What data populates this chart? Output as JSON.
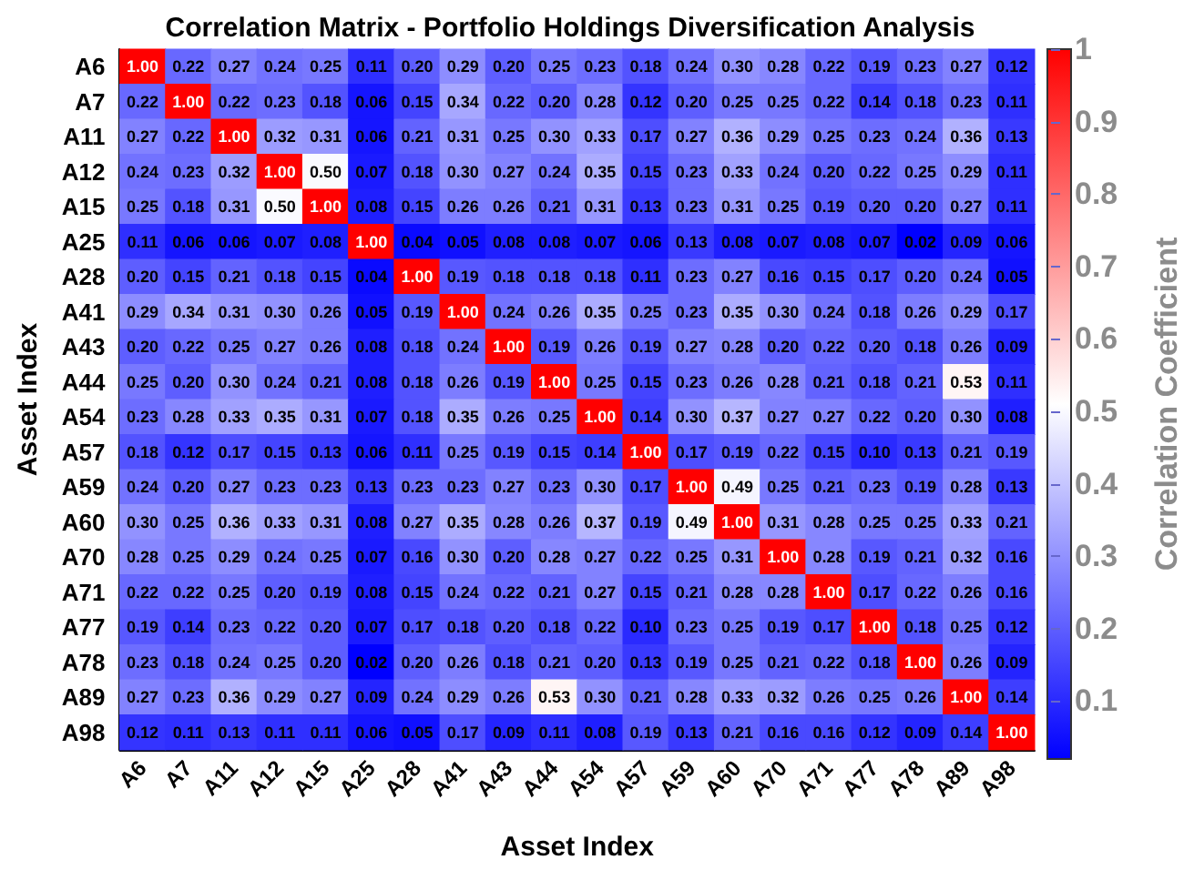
{
  "chart_data": {
    "type": "heatmap",
    "title": "Correlation Matrix - Portfolio Holdings Diversification Analysis",
    "xlabel": "Asset Index",
    "ylabel": "Asset Index",
    "clabel": "Correlation Coefficient",
    "categories": [
      "A6",
      "A7",
      "A11",
      "A12",
      "A15",
      "A25",
      "A28",
      "A41",
      "A43",
      "A44",
      "A54",
      "A57",
      "A59",
      "A60",
      "A70",
      "A71",
      "A77",
      "A78",
      "A89",
      "A98"
    ],
    "y_categories": [
      "A6",
      "A7",
      "A11",
      "A12",
      "A15",
      "A25",
      "A28",
      "A41",
      "A43",
      "A44",
      "A54",
      "A57",
      "A59",
      "A60",
      "A70",
      "A71",
      "A77",
      "A78",
      "A89",
      "A98"
    ],
    "cells": [
      [
        1.0,
        0.22,
        0.27,
        0.24,
        0.25,
        0.11,
        0.2,
        0.29,
        0.2,
        0.25,
        0.23,
        0.18,
        0.24,
        0.3,
        0.28,
        0.22,
        0.19,
        0.23,
        0.27,
        0.12
      ],
      [
        0.22,
        1.0,
        0.22,
        0.23,
        0.18,
        0.06,
        0.15,
        0.34,
        0.22,
        0.2,
        0.28,
        0.12,
        0.2,
        0.25,
        0.25,
        0.22,
        0.14,
        0.18,
        0.23,
        0.11
      ],
      [
        0.27,
        0.22,
        1.0,
        0.32,
        0.31,
        0.06,
        0.21,
        0.31,
        0.25,
        0.3,
        0.33,
        0.17,
        0.27,
        0.36,
        0.29,
        0.25,
        0.23,
        0.24,
        0.36,
        0.13
      ],
      [
        0.24,
        0.23,
        0.32,
        1.0,
        0.5,
        0.07,
        0.18,
        0.3,
        0.27,
        0.24,
        0.35,
        0.15,
        0.23,
        0.33,
        0.24,
        0.2,
        0.22,
        0.25,
        0.29,
        0.11
      ],
      [
        0.25,
        0.18,
        0.31,
        0.5,
        1.0,
        0.08,
        0.15,
        0.26,
        0.26,
        0.21,
        0.31,
        0.13,
        0.23,
        0.31,
        0.25,
        0.19,
        0.2,
        0.2,
        0.27,
        0.11
      ],
      [
        0.11,
        0.06,
        0.06,
        0.07,
        0.08,
        1.0,
        0.04,
        0.05,
        0.08,
        0.08,
        0.07,
        0.06,
        0.13,
        0.08,
        0.07,
        0.08,
        0.07,
        0.02,
        0.09,
        0.06
      ],
      [
        0.2,
        0.15,
        0.21,
        0.18,
        0.15,
        0.04,
        1.0,
        0.19,
        0.18,
        0.18,
        0.18,
        0.11,
        0.23,
        0.27,
        0.16,
        0.15,
        0.17,
        0.2,
        0.24,
        0.05
      ],
      [
        0.29,
        0.34,
        0.31,
        0.3,
        0.26,
        0.05,
        0.19,
        1.0,
        0.24,
        0.26,
        0.35,
        0.25,
        0.23,
        0.35,
        0.3,
        0.24,
        0.18,
        0.26,
        0.29,
        0.17
      ],
      [
        0.2,
        0.22,
        0.25,
        0.27,
        0.26,
        0.08,
        0.18,
        0.24,
        1.0,
        0.19,
        0.26,
        0.19,
        0.27,
        0.28,
        0.2,
        0.22,
        0.2,
        0.18,
        0.26,
        0.09
      ],
      [
        0.25,
        0.2,
        0.3,
        0.24,
        0.21,
        0.08,
        0.18,
        0.26,
        0.19,
        1.0,
        0.25,
        0.15,
        0.23,
        0.26,
        0.28,
        0.21,
        0.18,
        0.21,
        0.53,
        0.11
      ],
      [
        0.23,
        0.28,
        0.33,
        0.35,
        0.31,
        0.07,
        0.18,
        0.35,
        0.26,
        0.25,
        1.0,
        0.14,
        0.3,
        0.37,
        0.27,
        0.27,
        0.22,
        0.2,
        0.3,
        0.08
      ],
      [
        0.18,
        0.12,
        0.17,
        0.15,
        0.13,
        0.06,
        0.11,
        0.25,
        0.19,
        0.15,
        0.14,
        1.0,
        0.17,
        0.19,
        0.22,
        0.15,
        0.1,
        0.13,
        0.21,
        0.19
      ],
      [
        0.24,
        0.2,
        0.27,
        0.23,
        0.23,
        0.13,
        0.23,
        0.23,
        0.27,
        0.23,
        0.3,
        0.17,
        1.0,
        0.49,
        0.25,
        0.21,
        0.23,
        0.19,
        0.28,
        0.13
      ],
      [
        0.3,
        0.25,
        0.36,
        0.33,
        0.31,
        0.08,
        0.27,
        0.35,
        0.28,
        0.26,
        0.37,
        0.19,
        0.49,
        1.0,
        0.31,
        0.28,
        0.25,
        0.25,
        0.33,
        0.21
      ],
      [
        0.28,
        0.25,
        0.29,
        0.24,
        0.25,
        0.07,
        0.16,
        0.3,
        0.2,
        0.28,
        0.27,
        0.22,
        0.25,
        0.31,
        1.0,
        0.28,
        0.19,
        0.21,
        0.32,
        0.16
      ],
      [
        0.22,
        0.22,
        0.25,
        0.2,
        0.19,
        0.08,
        0.15,
        0.24,
        0.22,
        0.21,
        0.27,
        0.15,
        0.21,
        0.28,
        0.28,
        1.0,
        0.17,
        0.22,
        0.26,
        0.16
      ],
      [
        0.19,
        0.14,
        0.23,
        0.22,
        0.2,
        0.07,
        0.17,
        0.18,
        0.2,
        0.18,
        0.22,
        0.1,
        0.23,
        0.25,
        0.19,
        0.17,
        1.0,
        0.18,
        0.25,
        0.12
      ],
      [
        0.23,
        0.18,
        0.24,
        0.25,
        0.2,
        0.02,
        0.2,
        0.26,
        0.18,
        0.21,
        0.2,
        0.13,
        0.19,
        0.25,
        0.21,
        0.22,
        0.18,
        1.0,
        0.26,
        0.09
      ],
      [
        0.27,
        0.23,
        0.36,
        0.29,
        0.27,
        0.09,
        0.24,
        0.29,
        0.26,
        0.53,
        0.3,
        0.21,
        0.28,
        0.33,
        0.32,
        0.26,
        0.25,
        0.26,
        1.0,
        0.14
      ],
      [
        0.12,
        0.11,
        0.13,
        0.11,
        0.11,
        0.06,
        0.05,
        0.17,
        0.09,
        0.11,
        0.08,
        0.19,
        0.13,
        0.21,
        0.16,
        0.16,
        0.12,
        0.09,
        0.14,
        1.0
      ]
    ],
    "cell_labels": [
      [
        "1.00",
        "0.22",
        "0.27",
        "0.24",
        "0.25",
        "0.11",
        "0.20",
        "0.29",
        "0.20",
        "0.25",
        "0.23",
        "0.18",
        "0.24",
        "0.30",
        "0.28",
        "0.22",
        "0.19",
        "0.23",
        "0.27",
        "0.12"
      ],
      [
        "0.22",
        "1.00",
        "0.22",
        "0.23",
        "0.18",
        "0.06",
        "0.15",
        "0.34",
        "0.22",
        "0.20",
        "0.28",
        "0.12",
        "0.20",
        "0.25",
        "0.25",
        "0.22",
        "0.14",
        "0.18",
        "0.23",
        "0.11"
      ],
      [
        "0.27",
        "0.22",
        "1.00",
        "0.32",
        "0.31",
        "0.06",
        "0.21",
        "0.31",
        "0.25",
        "0.30",
        "0.33",
        "0.17",
        "0.27",
        "0.36",
        "0.29",
        "0.25",
        "0.23",
        "0.24",
        "0.36",
        "0.13"
      ],
      [
        "0.24",
        "0.23",
        "0.32",
        "1.00",
        "0.50",
        "0.07",
        "0.18",
        "0.30",
        "0.27",
        "0.24",
        "0.35",
        "0.15",
        "0.23",
        "0.33",
        "0.24",
        "0.20",
        "0.22",
        "0.25",
        "0.29",
        "0.11"
      ],
      [
        "0.25",
        "0.18",
        "0.31",
        "0.50",
        "1.00",
        "0.08",
        "0.15",
        "0.26",
        "0.26",
        "0.21",
        "0.31",
        "0.13",
        "0.23",
        "0.31",
        "0.25",
        "0.19",
        "0.20",
        "0.20",
        "0.27",
        "0.11"
      ],
      [
        "0.11",
        "0.06",
        "0.06",
        "0.07",
        "0.08",
        "1.00",
        "0.04",
        "0.05",
        "0.08",
        "0.08",
        "0.07",
        "0.06",
        "0.13",
        "0.08",
        "0.07",
        "0.08",
        "0.07",
        "0.02",
        "0.09",
        "0.06"
      ],
      [
        "0.20",
        "0.15",
        "0.21",
        "0.18",
        "0.15",
        "0.04",
        "1.00",
        "0.19",
        "0.18",
        "0.18",
        "0.18",
        "0.11",
        "0.23",
        "0.27",
        "0.16",
        "0.15",
        "0.17",
        "0.20",
        "0.24",
        "0.05"
      ],
      [
        "0.29",
        "0.34",
        "0.31",
        "0.30",
        "0.26",
        "0.05",
        "0.19",
        "1.00",
        "0.24",
        "0.26",
        "0.35",
        "0.25",
        "0.23",
        "0.35",
        "0.30",
        "0.24",
        "0.18",
        "0.26",
        "0.29",
        "0.17"
      ],
      [
        "0.20",
        "0.22",
        "0.25",
        "0.27",
        "0.26",
        "0.08",
        "0.18",
        "0.24",
        "1.00",
        "0.19",
        "0.26",
        "0.19",
        "0.27",
        "0.28",
        "0.20",
        "0.22",
        "0.20",
        "0.18",
        "0.26",
        "0.09"
      ],
      [
        "0.25",
        "0.20",
        "0.30",
        "0.24",
        "0.21",
        "0.08",
        "0.18",
        "0.26",
        "0.19",
        "1.00",
        "0.25",
        "0.15",
        "0.23",
        "0.26",
        "0.28",
        "0.21",
        "0.18",
        "0.21",
        "0.53",
        "0.11"
      ],
      [
        "0.23",
        "0.28",
        "0.33",
        "0.35",
        "0.31",
        "0.07",
        "0.18",
        "0.35",
        "0.26",
        "0.25",
        "1.00",
        "0.14",
        "0.30",
        "0.37",
        "0.27",
        "0.27",
        "0.22",
        "0.20",
        "0.30",
        "0.08"
      ],
      [
        "0.18",
        "0.12",
        "0.17",
        "0.15",
        "0.13",
        "0.06",
        "0.11",
        "0.25",
        "0.19",
        "0.15",
        "0.14",
        "1.00",
        "0.17",
        "0.19",
        "0.22",
        "0.15",
        "0.10",
        "0.13",
        "0.21",
        "0.19"
      ],
      [
        "0.24",
        "0.20",
        "0.27",
        "0.23",
        "0.23",
        "0.13",
        "0.23",
        "0.23",
        "0.27",
        "0.23",
        "0.30",
        "0.17",
        "1.00",
        "0.49",
        "0.25",
        "0.21",
        "0.23",
        "0.19",
        "0.28",
        "0.13"
      ],
      [
        "0.30",
        "0.25",
        "0.36",
        "0.33",
        "0.31",
        "0.08",
        "0.27",
        "0.35",
        "0.28",
        "0.26",
        "0.37",
        "0.19",
        "0.49",
        "1.00",
        "0.31",
        "0.28",
        "0.25",
        "0.25",
        "0.33",
        "0.21"
      ],
      [
        "0.28",
        "0.25",
        "0.29",
        "0.24",
        "0.25",
        "0.07",
        "0.16",
        "0.30",
        "0.20",
        "0.28",
        "0.27",
        "0.22",
        "0.25",
        "0.31",
        "1.00",
        "0.28",
        "0.19",
        "0.21",
        "0.32",
        "0.16"
      ],
      [
        "0.22",
        "0.22",
        "0.25",
        "0.20",
        "0.19",
        "0.08",
        "0.15",
        "0.24",
        "0.22",
        "0.21",
        "0.27",
        "0.15",
        "0.21",
        "0.28",
        "0.28",
        "1.00",
        "0.17",
        "0.22",
        "0.26",
        "0.16"
      ],
      [
        "0.19",
        "0.14",
        "0.23",
        "0.22",
        "0.20",
        "0.07",
        "0.17",
        "0.18",
        "0.20",
        "0.18",
        "0.22",
        "0.10",
        "0.23",
        "0.25",
        "0.19",
        "0.17",
        "1.00",
        "0.18",
        "0.25",
        "0.12"
      ],
      [
        "0.23",
        "0.18",
        "0.24",
        "0.25",
        "0.20",
        "0.02",
        "0.20",
        "0.26",
        "0.18",
        "0.21",
        "0.20",
        "0.13",
        "0.19",
        "0.25",
        "0.21",
        "0.22",
        "0.18",
        "1.00",
        "0.26",
        "0.09"
      ],
      [
        "0.27",
        "0.23",
        "0.36",
        "0.29",
        "0.27",
        "0.09",
        "0.24",
        "0.29",
        "0.26",
        "0.53",
        "0.30",
        "0.21",
        "0.28",
        "0.33",
        "0.32",
        "0.26",
        "0.25",
        "0.26",
        "1.00",
        "0.14"
      ],
      [
        "0.12",
        "0.11",
        "0.13",
        "0.11",
        "0.11",
        "0.06",
        "0.05",
        "0.17",
        "0.09",
        "0.11",
        "0.08",
        "0.19",
        "0.13",
        "0.21",
        "0.16",
        "0.16",
        "0.12",
        "0.09",
        "0.14",
        "1.00"
      ]
    ],
    "clim": [
      0.02,
      1
    ],
    "cticks": [
      0.1,
      0.2,
      0.3,
      0.4,
      0.5,
      0.6,
      0.7,
      0.8,
      0.9,
      1
    ],
    "data_labels": true
  }
}
